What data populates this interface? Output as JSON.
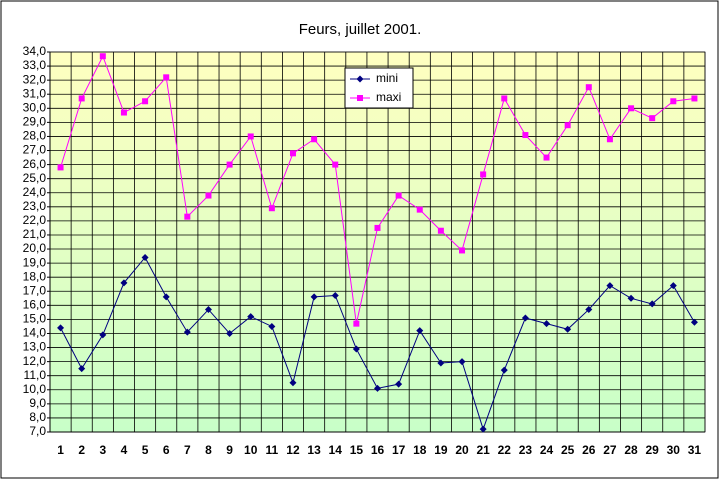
{
  "chart_data": {
    "type": "line",
    "title": "Feurs, juillet 2001.",
    "categories": [
      "1",
      "2",
      "3",
      "4",
      "5",
      "6",
      "7",
      "8",
      "9",
      "10",
      "11",
      "12",
      "13",
      "14",
      "15",
      "16",
      "17",
      "18",
      "19",
      "20",
      "21",
      "22",
      "23",
      "24",
      "25",
      "26",
      "27",
      "28",
      "29",
      "30",
      "31"
    ],
    "series": [
      {
        "name": "mini",
        "color": "#000080",
        "marker": "diamond",
        "values": [
          14.4,
          11.5,
          13.9,
          17.6,
          19.4,
          16.6,
          14.1,
          15.7,
          14.0,
          15.2,
          14.5,
          10.5,
          16.6,
          16.7,
          12.9,
          10.1,
          10.4,
          14.2,
          11.9,
          12.0,
          7.2,
          11.4,
          15.1,
          14.7,
          14.3,
          15.7,
          17.4,
          16.5,
          16.1,
          17.4,
          14.8
        ]
      },
      {
        "name": "maxi",
        "color": "#ff00ff",
        "marker": "square",
        "values": [
          25.8,
          30.7,
          33.7,
          29.7,
          30.5,
          32.2,
          22.3,
          23.8,
          26.0,
          28.0,
          22.9,
          26.8,
          27.8,
          26.0,
          14.7,
          21.5,
          23.8,
          22.8,
          21.3,
          19.9,
          25.3,
          30.7,
          28.1,
          26.5,
          28.8,
          31.5,
          27.8,
          30.0,
          29.3,
          30.5,
          30.7
        ]
      }
    ],
    "ylim": [
      7,
      34
    ],
    "yticks": [
      {
        "value": 7,
        "label": "7,0"
      },
      {
        "value": 8,
        "label": "8,0"
      },
      {
        "value": 9,
        "label": "9,0"
      },
      {
        "value": 10,
        "label": "10,0"
      },
      {
        "value": 11,
        "label": "11,0"
      },
      {
        "value": 12,
        "label": "12,0"
      },
      {
        "value": 13,
        "label": "13,0"
      },
      {
        "value": 14,
        "label": "14,0"
      },
      {
        "value": 15,
        "label": "15,0"
      },
      {
        "value": 16,
        "label": "16,0"
      },
      {
        "value": 17,
        "label": "17,0"
      },
      {
        "value": 18,
        "label": "18,0"
      },
      {
        "value": 19,
        "label": "19,0"
      },
      {
        "value": 20,
        "label": "20,0"
      },
      {
        "value": 21,
        "label": "21,0"
      },
      {
        "value": 22,
        "label": "22,0"
      },
      {
        "value": 23,
        "label": "23,0"
      },
      {
        "value": 24,
        "label": "24,0"
      },
      {
        "value": 25,
        "label": "25,0"
      },
      {
        "value": 26,
        "label": "26,0"
      },
      {
        "value": 27,
        "label": "27,0"
      },
      {
        "value": 28,
        "label": "28,0"
      },
      {
        "value": 29,
        "label": "29,0"
      },
      {
        "value": 30,
        "label": "30,0"
      },
      {
        "value": 31,
        "label": "31,0"
      },
      {
        "value": 32,
        "label": "32,0"
      },
      {
        "value": 33,
        "label": "33,0"
      },
      {
        "value": 34,
        "label": "34,0"
      }
    ],
    "grid": true,
    "legend": "top"
  }
}
